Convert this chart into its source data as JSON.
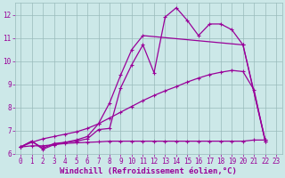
{
  "title": "",
  "xlabel": "Windchill (Refroidissement éolien,°C)",
  "ylabel": "",
  "bg_color": "#cce8e8",
  "line_color": "#990099",
  "grid_color": "#99bbbb",
  "xlim": [
    -0.5,
    23.5
  ],
  "ylim": [
    6.0,
    12.5
  ],
  "xticks": [
    0,
    1,
    2,
    3,
    4,
    5,
    6,
    7,
    8,
    9,
    10,
    11,
    12,
    13,
    14,
    15,
    16,
    17,
    18,
    19,
    20,
    21,
    22,
    23
  ],
  "yticks": [
    6,
    7,
    8,
    9,
    10,
    11,
    12
  ],
  "series": [
    {
      "x": [
        0,
        1,
        2,
        3,
        4,
        5,
        6,
        7,
        8,
        9,
        10,
        11,
        12,
        13,
        14,
        15,
        16,
        17,
        18,
        19,
        20,
        22
      ],
      "y": [
        6.3,
        6.55,
        6.2,
        6.4,
        6.5,
        6.55,
        6.65,
        7.05,
        7.1,
        8.85,
        9.85,
        10.7,
        9.5,
        11.9,
        12.3,
        11.75,
        11.1,
        11.6,
        11.6,
        11.35,
        10.7,
        6.6
      ]
    },
    {
      "x": [
        0,
        1,
        2,
        3,
        4,
        5,
        6,
        7,
        8,
        9,
        10,
        11,
        20,
        22
      ],
      "y": [
        6.3,
        6.55,
        6.25,
        6.45,
        6.5,
        6.6,
        6.75,
        7.3,
        8.2,
        9.4,
        10.5,
        11.1,
        10.7,
        6.55
      ]
    },
    {
      "x": [
        0,
        1,
        2,
        3,
        4,
        5,
        6,
        7,
        8,
        9,
        10,
        11,
        12,
        13,
        14,
        15,
        16,
        17,
        18,
        19,
        20,
        21,
        22
      ],
      "y": [
        6.3,
        6.35,
        6.35,
        6.4,
        6.45,
        6.48,
        6.5,
        6.52,
        6.55,
        6.55,
        6.55,
        6.55,
        6.55,
        6.55,
        6.55,
        6.55,
        6.55,
        6.55,
        6.55,
        6.55,
        6.55,
        6.6,
        6.6
      ]
    },
    {
      "x": [
        0,
        1,
        2,
        3,
        4,
        5,
        6,
        7,
        8,
        9,
        10,
        11,
        12,
        13,
        14,
        15,
        16,
        17,
        18,
        19,
        20,
        21,
        22
      ],
      "y": [
        6.3,
        6.5,
        6.65,
        6.75,
        6.85,
        6.95,
        7.1,
        7.3,
        7.55,
        7.8,
        8.05,
        8.3,
        8.52,
        8.72,
        8.9,
        9.1,
        9.27,
        9.42,
        9.52,
        9.6,
        9.55,
        8.75,
        6.55
      ]
    }
  ],
  "font_family": "monospace",
  "xlabel_fontsize": 6.5,
  "tick_fontsize": 5.5
}
